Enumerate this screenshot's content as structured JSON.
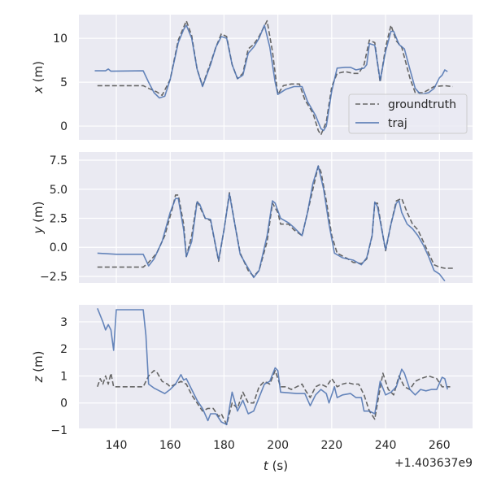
{
  "chart_data": [
    {
      "type": "line",
      "ylabel_var": "x",
      "ylabel_unit": " (m)",
      "ylim": [
        -1.57,
        12.7
      ],
      "yticks": [
        0,
        5,
        10
      ],
      "legend": {
        "position": "lower-right",
        "entries": [
          "groundtruth",
          "traj"
        ]
      },
      "series": [
        {
          "name": "groundtruth",
          "style": "dashed",
          "t": [
            133,
            150,
            152,
            155,
            157,
            160,
            163,
            166,
            168,
            170,
            172,
            175,
            177,
            179,
            181,
            183,
            185,
            187,
            189,
            191,
            193,
            196,
            198,
            200,
            202,
            205,
            208,
            210,
            213,
            215,
            216,
            218,
            220,
            222,
            225,
            228,
            230,
            232,
            234,
            236,
            238,
            240,
            242,
            244,
            246,
            249,
            251,
            254,
            258,
            262,
            265
          ],
          "v": [
            4.6,
            4.6,
            4.3,
            3.9,
            3.5,
            5.3,
            9.8,
            12,
            10.3,
            6.5,
            4.6,
            7.2,
            9,
            10.5,
            10.2,
            7,
            5.4,
            6,
            8.8,
            9.3,
            10.2,
            12,
            8.5,
            3.6,
            4.6,
            4.8,
            4.8,
            3,
            1.5,
            -0.5,
            -1,
            0.5,
            4.5,
            6,
            6.2,
            6,
            6,
            7,
            9.8,
            9.5,
            5,
            9,
            11.5,
            9.7,
            9,
            5.5,
            3.8,
            3.8,
            4.5,
            4.6,
            4.5
          ]
        },
        {
          "name": "traj",
          "style": "solid",
          "t": [
            132,
            136,
            137,
            138,
            150,
            152,
            154,
            156,
            158,
            160,
            163,
            165,
            166,
            168,
            170,
            172,
            175,
            177,
            179,
            181,
            183,
            185,
            187,
            189,
            191,
            193,
            195,
            197,
            199,
            200,
            203,
            206,
            209,
            211,
            214,
            216,
            217,
            218,
            220,
            222,
            225,
            227,
            229,
            232,
            233,
            234,
            236,
            238,
            240,
            242,
            243,
            245,
            247,
            249,
            251,
            253,
            256,
            258,
            260,
            261,
            262,
            263
          ],
          "v": [
            6.3,
            6.3,
            6.5,
            6.25,
            6.3,
            5,
            3.8,
            3.2,
            3.4,
            5.3,
            9.5,
            11,
            11.5,
            10,
            6.5,
            4.5,
            7,
            9,
            10.2,
            10,
            7,
            5.4,
            5.8,
            8.3,
            9,
            10,
            11.5,
            9,
            5,
            3.6,
            4.2,
            4.5,
            4.5,
            2.8,
            1.2,
            -0.3,
            -0.5,
            0,
            4,
            6.6,
            6.7,
            6.7,
            6.4,
            6.6,
            7,
            9.4,
            9.2,
            5.2,
            8.5,
            10.8,
            10.8,
            9.3,
            8.8,
            6.5,
            4.3,
            3.6,
            3.8,
            4.3,
            5.5,
            5.8,
            6.4,
            6.2
          ]
        }
      ]
    },
    {
      "type": "line",
      "ylabel_var": "y",
      "ylabel_unit": " (m)",
      "ylim": [
        -3.06,
        8.2
      ],
      "yticks": [
        -2.5,
        0.0,
        2.5,
        5.0,
        7.5
      ],
      "series": [
        {
          "name": "groundtruth",
          "style": "dashed",
          "t": [
            133,
            150,
            152,
            155,
            158,
            161,
            162,
            163,
            165,
            166,
            168,
            170,
            171,
            173,
            175,
            178,
            180,
            182,
            184,
            186,
            189,
            191,
            193,
            196,
            198,
            200,
            201,
            204,
            206,
            209,
            211,
            213,
            215,
            216,
            218,
            220,
            222,
            226,
            228,
            231,
            233,
            235,
            236,
            237,
            239,
            240,
            242,
            244,
            246,
            248,
            250,
            252,
            254,
            256,
            258,
            260,
            262,
            265
          ],
          "v": [
            -1.7,
            -1.7,
            -1.3,
            -0.5,
            1,
            3.5,
            4.5,
            4.5,
            2,
            -0.8,
            1,
            4,
            3.5,
            2.5,
            2.3,
            -1.2,
            1.5,
            4.7,
            2,
            -0.5,
            -2,
            -2.5,
            -2,
            0.5,
            3.8,
            3,
            2,
            2,
            1.5,
            1,
            3,
            5,
            7,
            6.5,
            4,
            1,
            -0.5,
            -1,
            -1.3,
            -1.4,
            -1,
            1,
            3.8,
            3.8,
            1,
            -0.3,
            2,
            4,
            4.2,
            3,
            2,
            1.5,
            0.5,
            -0.5,
            -1.5,
            -1.7,
            -1.8,
            -1.8
          ]
        },
        {
          "name": "traj",
          "style": "solid",
          "t": [
            133,
            140,
            150,
            152,
            154,
            157,
            160,
            162,
            163,
            165,
            166,
            168,
            170,
            171,
            173,
            175,
            177,
            178,
            180,
            182,
            184,
            186,
            189,
            191,
            193,
            196,
            198,
            199,
            201,
            204,
            206,
            209,
            211,
            213,
            215,
            217,
            219,
            221,
            224,
            228,
            231,
            233,
            235,
            236,
            237,
            239,
            240,
            242,
            244,
            245,
            246,
            248,
            250,
            252,
            254,
            256,
            258,
            260,
            262
          ],
          "v": [
            -0.5,
            -0.6,
            -0.6,
            -1.6,
            -1,
            0.5,
            3,
            4.2,
            4.2,
            1.5,
            -0.8,
            0.5,
            3.9,
            3.7,
            2.5,
            2.4,
            0,
            -1.1,
            1.5,
            4.6,
            2,
            -0.6,
            -1.8,
            -2.6,
            -2,
            1,
            4,
            3.8,
            2.5,
            2.1,
            1.7,
            1,
            3,
            5.5,
            7,
            5,
            2,
            -0.5,
            -0.9,
            -1.1,
            -1.5,
            -0.9,
            1,
            3.9,
            3.5,
            1,
            -0.2,
            2,
            3.8,
            4,
            3,
            2,
            1.6,
            1,
            0.2,
            -0.8,
            -2,
            -2.3,
            -2.9
          ]
        }
      ]
    },
    {
      "type": "line",
      "ylabel_var": "z",
      "ylabel_unit": " (m)",
      "ylim": [
        -0.94,
        3.63
      ],
      "yticks": [
        -1,
        0,
        1,
        2,
        3
      ],
      "series": [
        {
          "name": "groundtruth",
          "style": "dashed",
          "t": [
            133,
            134,
            135,
            136,
            137,
            138,
            139,
            150,
            152,
            154,
            155,
            157,
            159,
            160,
            162,
            164,
            166,
            168,
            170,
            172,
            174,
            176,
            178,
            179,
            181,
            183,
            185,
            187,
            189,
            191,
            193,
            195,
            197,
            199,
            201,
            203,
            205,
            207,
            209,
            210,
            212,
            214,
            216,
            218,
            220,
            222,
            224,
            226,
            228,
            230,
            232,
            234,
            236,
            237,
            239,
            241,
            243,
            245,
            247,
            249,
            251,
            253,
            256,
            259,
            261,
            264
          ],
          "v": [
            0.6,
            0.9,
            0.7,
            1,
            0.7,
            1.1,
            0.6,
            0.6,
            1,
            1.2,
            1.15,
            0.8,
            0.7,
            0.6,
            0.7,
            0.8,
            0.7,
            0.3,
            0,
            -0.3,
            -0.2,
            -0.2,
            -0.5,
            -0.4,
            -0.8,
            0,
            -0.2,
            0.4,
            0,
            0,
            0.6,
            0.8,
            0.7,
            1.2,
            0.6,
            0.6,
            0.5,
            0.6,
            0.7,
            0.5,
            0.2,
            0.6,
            0.7,
            0.6,
            0.9,
            0.6,
            0.7,
            0.75,
            0.7,
            0.7,
            0.3,
            -0.3,
            -0.6,
            0,
            1.1,
            0.5,
            0.3,
            1,
            0.6,
            0.5,
            0.8,
            0.9,
            1,
            0.9,
            0.6,
            0.6
          ]
        },
        {
          "name": "traj",
          "style": "solid",
          "t": [
            133,
            135,
            136,
            137,
            138,
            139,
            140,
            150,
            151,
            152,
            154,
            155,
            156,
            158,
            160,
            162,
            164,
            165,
            166,
            168,
            170,
            172,
            174,
            175,
            177,
            179,
            181,
            183,
            185,
            187,
            189,
            191,
            193,
            195,
            197,
            199,
            200,
            201,
            207,
            210,
            212,
            214,
            216,
            218,
            219,
            221,
            222,
            224,
            227,
            229,
            231,
            232,
            234,
            236,
            237,
            238,
            240,
            242,
            244,
            246,
            247,
            249,
            251,
            253,
            255,
            257,
            259,
            261,
            262,
            263
          ],
          "v": [
            3.5,
            3,
            2.7,
            2.9,
            2.7,
            1.95,
            3.45,
            3.45,
            2.5,
            0.7,
            0.55,
            0.5,
            0.45,
            0.35,
            0.5,
            0.7,
            1.05,
            0.85,
            0.9,
            0.5,
            0.1,
            -0.2,
            -0.65,
            -0.4,
            -0.4,
            -0.7,
            -0.8,
            0.4,
            -0.3,
            0.1,
            -0.4,
            -0.3,
            0.2,
            0.7,
            0.8,
            1.3,
            1.2,
            0.4,
            0.35,
            0.35,
            -0.1,
            0.3,
            0.5,
            0.35,
            0,
            0.6,
            0.2,
            0.3,
            0.35,
            0.2,
            0.2,
            -0.3,
            -0.3,
            -0.4,
            0.2,
            0.8,
            0.3,
            0.4,
            0.6,
            1.25,
            1.1,
            0.5,
            0.3,
            0.5,
            0.45,
            0.5,
            0.5,
            0.95,
            0.9,
            0.5
          ]
        }
      ]
    }
  ],
  "shared_x": {
    "xlim": [
      126.1,
      272.3
    ],
    "xticks": [
      140,
      160,
      180,
      200,
      220,
      240,
      260
    ],
    "xlabel_var": "t",
    "xlabel_unit": " (s)",
    "offset_text": "+1.403637e9"
  },
  "colors": {
    "groundtruth": "#666666",
    "traj": "#4c72b0",
    "background": "#eaeaf2",
    "grid": "#ffffff"
  }
}
